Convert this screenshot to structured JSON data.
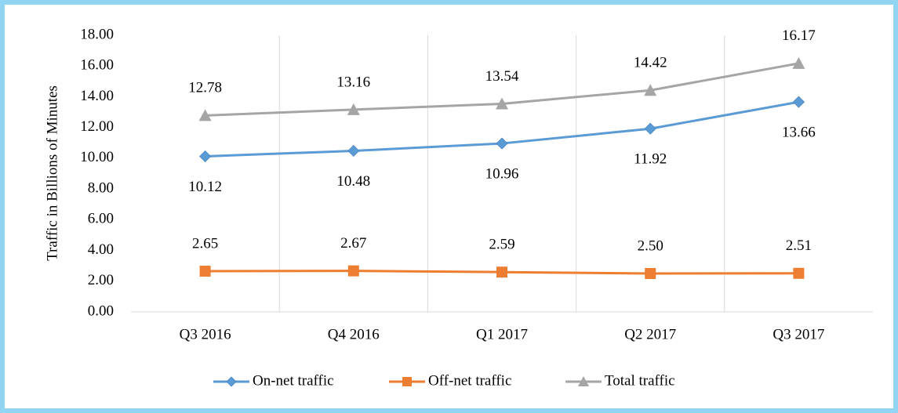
{
  "chart_data": {
    "type": "line",
    "y_label": "Traffic in Billions of Minutes",
    "categories": [
      "Q3 2016",
      "Q4 2016",
      "Q1 2017",
      "Q2 2017",
      "Q3 2017"
    ],
    "series": [
      {
        "name": "On-net traffic",
        "color": "#5b9bd5",
        "marker": "diamond",
        "values": [
          10.12,
          10.48,
          10.96,
          11.92,
          13.66
        ],
        "value_labels": [
          "10.12",
          "10.48",
          "10.96",
          "11.92",
          "13.66"
        ],
        "label_position": "below"
      },
      {
        "name": "Off-net traffic",
        "color": "#ed7d31",
        "marker": "square",
        "values": [
          2.65,
          2.67,
          2.59,
          2.5,
          2.51
        ],
        "value_labels": [
          "2.65",
          "2.67",
          "2.59",
          "2.50",
          "2.51"
        ],
        "label_position": "above"
      },
      {
        "name": "Total traffic",
        "color": "#a5a5a5",
        "marker": "triangle",
        "values": [
          12.78,
          13.16,
          13.54,
          14.42,
          16.17
        ],
        "value_labels": [
          "12.78",
          "13.16",
          "13.54",
          "14.42",
          "16.17"
        ],
        "label_position": "above"
      }
    ],
    "ylim": [
      0,
      18
    ],
    "yticks": [
      {
        "value": 0,
        "label": "0.00"
      },
      {
        "value": 2,
        "label": "2.00"
      },
      {
        "value": 4,
        "label": "4.00"
      },
      {
        "value": 6,
        "label": "6.00"
      },
      {
        "value": 8,
        "label": "8.00"
      },
      {
        "value": 10,
        "label": "10.00"
      },
      {
        "value": 12,
        "label": "12.00"
      },
      {
        "value": 14,
        "label": "14.00"
      },
      {
        "value": 16,
        "label": "16.00"
      },
      {
        "value": 18,
        "label": "18.00"
      }
    ],
    "legend": "bottom"
  }
}
